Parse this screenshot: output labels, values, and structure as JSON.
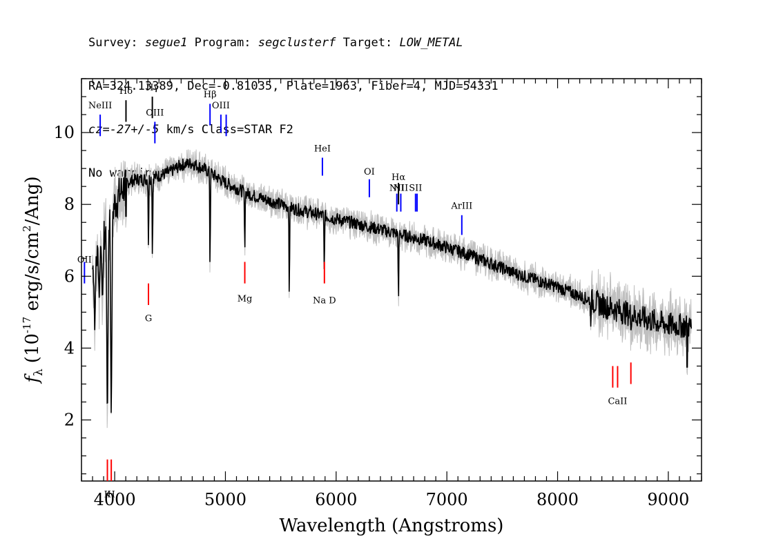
{
  "header": {
    "survey_label": "Survey:",
    "survey": "segue1",
    "program_label": "Program:",
    "program": "segclusterf",
    "target_label": "Target:",
    "target": "LOW_METAL",
    "line2": "RA=324.13389, Dec=-0.81035, Plate=1963, Fiber=4, MJD=54331",
    "cz": "cz=-27+/-5",
    "cz_rest": " km/s Class=STAR F2",
    "line4": "No warnings."
  },
  "chart_data": {
    "type": "line",
    "xlabel": "Wavelength (Angstroms)",
    "ylabel_f": "f",
    "ylabel_sub": "λ",
    "ylabel_pre": "(10",
    "ylabel_exp": "-17",
    "ylabel_mid": " erg/s/cm",
    "ylabel_exp2": "2",
    "ylabel_post": "/Ang)",
    "xlim": [
      3700,
      9300
    ],
    "ylim": [
      0.3,
      11.5
    ],
    "xticks": [
      "4000",
      "5000",
      "6000",
      "7000",
      "8000",
      "9000"
    ],
    "yticks": [
      "2",
      "4",
      "6",
      "8",
      "10"
    ],
    "grid": false,
    "colors": {
      "spectrum": "#000000",
      "error_band": "#c0c0c0",
      "emission": "#0000ff",
      "absorption": "#ff0000"
    },
    "continuum": {
      "x": [
        3800,
        3900,
        4000,
        4100,
        4200,
        4300,
        4400,
        4500,
        4600,
        4700,
        4800,
        4900,
        5000,
        5200,
        5400,
        5600,
        5800,
        6000,
        6200,
        6400,
        6600,
        6800,
        7000,
        7200,
        7400,
        7600,
        7800,
        8000,
        8200,
        8400,
        8600,
        8800,
        9000,
        9200
      ],
      "y": [
        6.2,
        7.0,
        8.0,
        8.6,
        8.7,
        8.7,
        8.8,
        8.9,
        9.1,
        9.15,
        9.0,
        8.8,
        8.6,
        8.3,
        8.1,
        7.9,
        7.75,
        7.6,
        7.45,
        7.3,
        7.15,
        7.0,
        6.8,
        6.6,
        6.35,
        6.1,
        5.9,
        5.7,
        5.45,
        5.2,
        5.0,
        4.8,
        4.65,
        4.6
      ]
    },
    "absorption_features": [
      {
        "x": 3820,
        "y": 4.5
      },
      {
        "x": 3860,
        "y": 5.4
      },
      {
        "x": 3890,
        "y": 5.2
      },
      {
        "x": 3934,
        "y": 1.5
      },
      {
        "x": 3969,
        "y": 1.7
      },
      {
        "x": 4102,
        "y": 7.2
      },
      {
        "x": 4305,
        "y": 6.5
      },
      {
        "x": 4341,
        "y": 6.2
      },
      {
        "x": 4861,
        "y": 5.9
      },
      {
        "x": 5175,
        "y": 6.5
      },
      {
        "x": 5577,
        "y": 5.1
      },
      {
        "x": 5893,
        "y": 5.9
      },
      {
        "x": 6563,
        "y": 5.1
      },
      {
        "x": 8300,
        "y": 4.6
      },
      {
        "x": 8662,
        "y": 4.3
      },
      {
        "x": 9170,
        "y": 2.9
      }
    ],
    "lines": [
      {
        "label": "OII",
        "x": 3727,
        "kind": "emission",
        "y1": 6.4,
        "y2": 5.8,
        "label_y": 6.3
      },
      {
        "label": "NeIII",
        "x": 3869,
        "kind": "emission",
        "y1": 10.5,
        "y2": 9.9,
        "label_y": 10.6
      },
      {
        "label": "Hδ",
        "x": 4102,
        "kind": "hydrogen",
        "y1": 10.9,
        "y2": 10.3,
        "label_y": 11.0
      },
      {
        "label": "Hγ",
        "x": 4340,
        "kind": "hydrogen",
        "y1": 11.0,
        "y2": 10.4,
        "label_y": 11.1
      },
      {
        "label": "OIII",
        "x": 4363,
        "kind": "emission",
        "y1": 10.3,
        "y2": 9.7,
        "label_y": 10.4
      },
      {
        "label": "Hβ",
        "x": 4861,
        "kind": "emission",
        "y1": 10.8,
        "y2": 10.2,
        "label_y": 10.9
      },
      {
        "label": "OIII",
        "x": 4959,
        "kind": "emission",
        "y1": 10.5,
        "y2": 10.0,
        "label_y": 10.6
      },
      {
        "label": "",
        "x": 5007,
        "kind": "emission",
        "y1": 10.5,
        "y2": 9.9,
        "label_y": 10.6
      },
      {
        "label": "HeI",
        "x": 5876,
        "kind": "emission",
        "y1": 9.3,
        "y2": 8.8,
        "label_y": 9.4
      },
      {
        "label": "OI",
        "x": 6300,
        "kind": "emission",
        "y1": 8.7,
        "y2": 8.2,
        "label_y": 8.75
      },
      {
        "label": "NII",
        "x": 6548,
        "kind": "emission",
        "y1": 8.3,
        "y2": 7.8,
        "label_y": 8.3
      },
      {
        "label": "Hα",
        "x": 6563,
        "kind": "hydrogen",
        "y1": 8.6,
        "y2": 8.0,
        "label_y": 8.6
      },
      {
        "label": "NII",
        "x": 6584,
        "kind": "emission",
        "y1": 8.3,
        "y2": 7.8,
        "label_y": 8.3
      },
      {
        "label": "SII",
        "x": 6717,
        "kind": "emission",
        "y1": 8.3,
        "y2": 7.8,
        "label_y": 8.3
      },
      {
        "label": "",
        "x": 6731,
        "kind": "emission",
        "y1": 8.3,
        "y2": 7.8,
        "label_y": 8.3
      },
      {
        "label": "ArIII",
        "x": 7135,
        "kind": "emission",
        "y1": 7.7,
        "y2": 7.15,
        "label_y": 7.8
      },
      {
        "label": "K",
        "x": 3934,
        "kind": "absorption",
        "y1": 0.9,
        "y2": 0.3,
        "label_y": 0.0
      },
      {
        "label": "H",
        "x": 3969,
        "kind": "absorption",
        "y1": 0.9,
        "y2": 0.3,
        "label_y": 0.0
      },
      {
        "label": "G",
        "x": 4305,
        "kind": "absorption",
        "y1": 5.8,
        "y2": 5.2,
        "label_y": 4.9
      },
      {
        "label": "Mg",
        "x": 5175,
        "kind": "absorption",
        "y1": 6.4,
        "y2": 5.8,
        "label_y": 5.45
      },
      {
        "label": "Na D",
        "x": 5894,
        "kind": "absorption",
        "y1": 6.4,
        "y2": 5.8,
        "label_y": 5.4
      },
      {
        "label": "",
        "x": 8498,
        "kind": "absorption",
        "y1": 3.5,
        "y2": 2.9,
        "label_y": 2.6
      },
      {
        "label": "CaII",
        "x": 8542,
        "kind": "absorption",
        "y1": 3.5,
        "y2": 2.9,
        "label_y": 2.6
      },
      {
        "label": "",
        "x": 8662,
        "kind": "absorption",
        "y1": 3.6,
        "y2": 3.0,
        "label_y": 2.6
      }
    ]
  }
}
